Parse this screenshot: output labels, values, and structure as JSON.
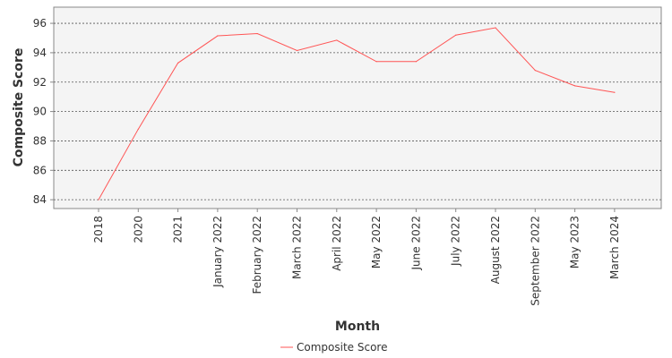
{
  "chart_data": {
    "type": "line",
    "categories": [
      "2018",
      "2020",
      "2021",
      "January 2022",
      "February 2022",
      "March 2022",
      "April 2022",
      "May 2022",
      "June 2022",
      "July 2022",
      "August 2022",
      "September 2022",
      "May 2023",
      "March 2024"
    ],
    "series": [
      {
        "name": "Composite Score",
        "color": "#ff5555",
        "values": [
          84.0,
          88.8,
          93.3,
          95.15,
          95.3,
          94.15,
          94.85,
          93.4,
          93.4,
          95.2,
          95.7,
          92.8,
          91.75,
          91.3
        ]
      }
    ],
    "xlabel": "Month",
    "ylabel": "Composite Score",
    "ylim": [
      83.4,
      97.1
    ],
    "yticks": [
      84,
      86,
      88,
      90,
      92,
      94,
      96
    ],
    "grid": true,
    "legend_position": "bottom"
  }
}
